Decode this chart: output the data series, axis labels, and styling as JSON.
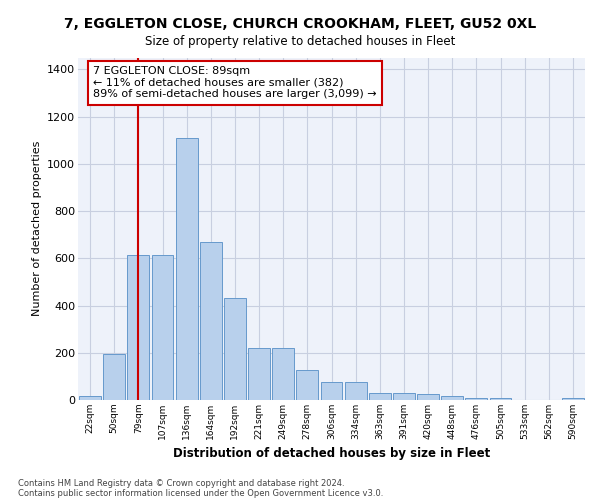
{
  "title_line1": "7, EGGLETON CLOSE, CHURCH CROOKHAM, FLEET, GU52 0XL",
  "title_line2": "Size of property relative to detached houses in Fleet",
  "xlabel": "Distribution of detached houses by size in Fleet",
  "ylabel": "Number of detached properties",
  "footer_line1": "Contains HM Land Registry data © Crown copyright and database right 2024.",
  "footer_line2": "Contains public sector information licensed under the Open Government Licence v3.0.",
  "bar_labels": [
    "22sqm",
    "50sqm",
    "79sqm",
    "107sqm",
    "136sqm",
    "164sqm",
    "192sqm",
    "221sqm",
    "249sqm",
    "278sqm",
    "306sqm",
    "334sqm",
    "363sqm",
    "391sqm",
    "420sqm",
    "448sqm",
    "476sqm",
    "505sqm",
    "533sqm",
    "562sqm",
    "590sqm"
  ],
  "bar_values": [
    18,
    195,
    615,
    615,
    1110,
    670,
    430,
    220,
    220,
    125,
    75,
    75,
    30,
    30,
    25,
    15,
    8,
    8,
    0,
    0,
    8
  ],
  "bar_color": "#b8d0ec",
  "bar_edgecolor": "#6699cc",
  "ylim": [
    0,
    1450
  ],
  "yticks": [
    0,
    200,
    400,
    600,
    800,
    1000,
    1200,
    1400
  ],
  "vline_bin_index": 2,
  "vline_color": "#cc0000",
  "annotation_text": "7 EGGLETON CLOSE: 89sqm\n← 11% of detached houses are smaller (382)\n89% of semi-detached houses are larger (3,099) →",
  "annotation_box_facecolor": "#ffffff",
  "annotation_box_edgecolor": "#cc0000",
  "bg_color": "#eef2fa",
  "grid_color": "#c8cfe0"
}
